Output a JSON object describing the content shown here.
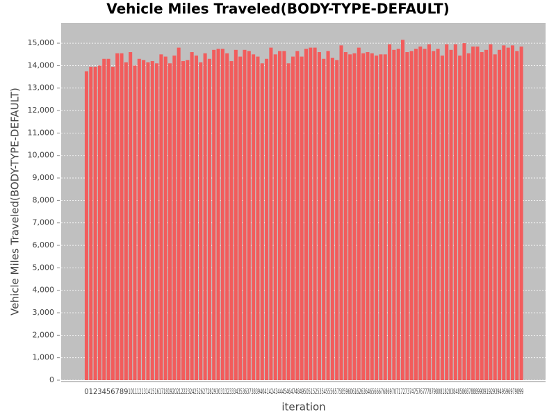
{
  "chart_data": {
    "type": "bar",
    "title": "Vehicle Miles Traveled(BODY-TYPE-DEFAULT)",
    "x_label": "iteration",
    "y_label": "Vehicle Miles Traveled(BODY-TYPE-DEFAULT)",
    "categories": [
      "0",
      "1",
      "2",
      "3",
      "4",
      "5",
      "6",
      "7",
      "8",
      "9",
      "10",
      "11",
      "12",
      "13",
      "14",
      "15",
      "16",
      "17",
      "18",
      "19",
      "20",
      "21",
      "22",
      "23",
      "24",
      "25",
      "26",
      "27",
      "28",
      "29",
      "30",
      "31",
      "32",
      "33",
      "34",
      "35",
      "36",
      "37",
      "38",
      "39",
      "40",
      "41",
      "42",
      "43",
      "44",
      "45",
      "46",
      "47",
      "48",
      "49",
      "50",
      "51",
      "52",
      "53",
      "54",
      "55",
      "56",
      "57",
      "58",
      "59",
      "60",
      "61",
      "62",
      "63",
      "64",
      "65",
      "66",
      "67",
      "68",
      "69",
      "70",
      "71",
      "72",
      "73",
      "74",
      "75",
      "76",
      "77",
      "78",
      "79",
      "80",
      "81",
      "82",
      "83",
      "84",
      "85",
      "86",
      "87",
      "88",
      "89",
      "90",
      "91",
      "92",
      "93",
      "94",
      "95",
      "96",
      "97",
      "98",
      "99"
    ],
    "values": [
      13750,
      13950,
      13950,
      14000,
      14300,
      14300,
      13950,
      14550,
      14550,
      14150,
      14600,
      14000,
      14300,
      14250,
      14150,
      14200,
      14100,
      14500,
      14400,
      14100,
      14450,
      14800,
      14200,
      14250,
      14600,
      14450,
      14150,
      14550,
      14300,
      14700,
      14750,
      14750,
      14550,
      14200,
      14700,
      14400,
      14700,
      14650,
      14500,
      14400,
      14100,
      14300,
      14800,
      14500,
      14650,
      14650,
      14100,
      14400,
      14650,
      14400,
      14750,
      14800,
      14800,
      14600,
      14300,
      14650,
      14350,
      14250,
      14900,
      14600,
      14500,
      14550,
      14800,
      14550,
      14600,
      14550,
      14450,
      14500,
      14500,
      14950,
      14700,
      14750,
      15150,
      14600,
      14650,
      14750,
      14850,
      14750,
      14950,
      14650,
      14750,
      14450,
      14950,
      14700,
      14950,
      14450,
      15000,
      14550,
      14850,
      14850,
      14600,
      14700,
      14950,
      14500,
      14700,
      14900,
      14800,
      14900,
      14650,
      14850
    ],
    "color": "#f25c5c",
    "ylim": [
      0,
      15900
    ],
    "yticks": [
      0,
      {
        "value": 1000,
        "label": "1,000"
      },
      {
        "value": 2000,
        "label": "2,000"
      },
      {
        "value": 3000,
        "label": "3,000"
      },
      {
        "value": 4000,
        "label": "4,000"
      },
      {
        "value": 5000,
        "label": "5,000"
      },
      {
        "value": 6000,
        "label": "6,000"
      },
      {
        "value": 7000,
        "label": "7,000"
      },
      {
        "value": 8000,
        "label": "8,000"
      },
      {
        "value": 9000,
        "label": "9,000"
      },
      {
        "value": 10000,
        "label": "10,000"
      },
      {
        "value": 11000,
        "label": "11,000"
      },
      {
        "value": 12000,
        "label": "12,000"
      },
      {
        "value": 13000,
        "label": "13,000"
      },
      {
        "value": 14000,
        "label": "14,000"
      },
      {
        "value": 15000,
        "label": "15,000"
      }
    ],
    "grid": true
  }
}
